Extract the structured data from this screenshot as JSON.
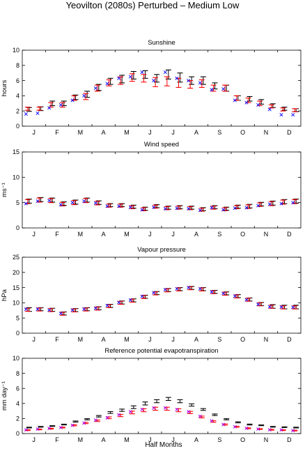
{
  "figure": {
    "title": "Yeovilton (2080s) Perturbed – Medium Low",
    "xlabel": "Half Months"
  },
  "month_labels": [
    "J",
    "F",
    "M",
    "A",
    "M",
    "J",
    "J",
    "A",
    "S",
    "O",
    "N",
    "D"
  ],
  "colors": {
    "red_series": "#ff0000",
    "blue_series": "#0000ff",
    "black_series": "#000000",
    "magenta_series": "#a000ff"
  },
  "chart_data": [
    {
      "type": "errorbar",
      "title": "Sunshine",
      "ylabel": "hours",
      "ylim": [
        0,
        10
      ],
      "yticks": [
        0,
        2,
        4,
        6,
        8,
        10
      ],
      "series": [
        {
          "name": "",
          "kind": "errorbar",
          "color": "#000000",
          "mid": [
            2.2,
            2.3,
            3.0,
            3.0,
            3.8,
            4.2,
            5.1,
            5.9,
            6.2,
            6.7,
            6.8,
            6.3,
            6.8,
            6.4,
            6.0,
            6.0,
            5.3,
            5.0,
            3.7,
            3.6,
            3.2,
            2.7,
            2.3,
            2.1
          ],
          "err": [
            0.25,
            0.25,
            0.3,
            0.3,
            0.3,
            0.4,
            0.4,
            0.4,
            0.5,
            0.5,
            0.5,
            0.5,
            0.6,
            0.6,
            0.5,
            0.5,
            0.4,
            0.4,
            0.3,
            0.3,
            0.3,
            0.25,
            0.2,
            0.2
          ]
        },
        {
          "name": "",
          "kind": "errorbar",
          "color": "#ff0000",
          "mid": [
            2.3,
            2.3,
            2.8,
            2.8,
            3.7,
            3.9,
            5.0,
            5.7,
            6.0,
            6.4,
            6.3,
            5.8,
            5.9,
            5.7,
            5.5,
            5.6,
            5.0,
            5.0,
            3.7,
            3.4,
            3.0,
            2.6,
            2.2,
            2.1
          ],
          "err": [
            0.2,
            0.2,
            0.3,
            0.3,
            0.3,
            0.4,
            0.4,
            0.4,
            0.5,
            0.5,
            0.5,
            0.6,
            0.6,
            0.6,
            0.5,
            0.5,
            0.4,
            0.4,
            0.3,
            0.3,
            0.3,
            0.2,
            0.2,
            0.2
          ]
        },
        {
          "name": "",
          "kind": "marker",
          "color": "#0000ff",
          "values": [
            1.6,
            1.7,
            2.4,
            2.8,
            3.4,
            4.0,
            5.0,
            5.6,
            6.3,
            6.5,
            7.1,
            6.0,
            7.1,
            6.3,
            6.0,
            5.7,
            4.8,
            4.9,
            3.4,
            3.1,
            2.8,
            2.2,
            1.5,
            1.5
          ]
        }
      ]
    },
    {
      "type": "errorbar",
      "title": "Wind speed",
      "ylabel": "ms⁻¹",
      "ylim": [
        0,
        15
      ],
      "yticks": [
        0,
        5,
        10,
        15
      ],
      "series": [
        {
          "name": "",
          "kind": "errorbar",
          "color": "#000000",
          "mid": [
            5.3,
            5.6,
            5.5,
            4.8,
            5.1,
            5.5,
            5.0,
            4.5,
            4.5,
            4.2,
            3.8,
            4.3,
            4.0,
            4.1,
            4.0,
            3.7,
            4.1,
            3.8,
            4.2,
            4.3,
            4.7,
            4.9,
            5.2,
            5.3
          ],
          "err": [
            0.4,
            0.4,
            0.4,
            0.35,
            0.4,
            0.4,
            0.35,
            0.3,
            0.3,
            0.3,
            0.3,
            0.3,
            0.3,
            0.3,
            0.3,
            0.3,
            0.3,
            0.3,
            0.3,
            0.35,
            0.35,
            0.4,
            0.4,
            0.4
          ]
        },
        {
          "name": "",
          "kind": "errorbar",
          "color": "#ff0000",
          "mid": [
            5.2,
            5.5,
            5.4,
            4.7,
            5.0,
            5.4,
            4.9,
            4.4,
            4.4,
            4.1,
            3.7,
            4.2,
            3.9,
            4.0,
            3.9,
            3.6,
            4.0,
            3.7,
            4.1,
            4.2,
            4.6,
            4.8,
            5.1,
            5.2
          ],
          "err": [
            0.4,
            0.4,
            0.4,
            0.35,
            0.4,
            0.4,
            0.35,
            0.3,
            0.3,
            0.3,
            0.3,
            0.3,
            0.3,
            0.3,
            0.3,
            0.3,
            0.3,
            0.3,
            0.3,
            0.35,
            0.35,
            0.4,
            0.4,
            0.4
          ]
        },
        {
          "name": "",
          "kind": "marker",
          "color": "#0000ff",
          "values": [
            4.8,
            5.3,
            5.4,
            4.6,
            5.0,
            5.3,
            4.9,
            4.3,
            4.3,
            4.1,
            3.6,
            4.1,
            3.8,
            3.9,
            3.8,
            3.5,
            4.0,
            3.6,
            3.9,
            4.0,
            4.4,
            4.7,
            4.8,
            5.0
          ]
        }
      ]
    },
    {
      "type": "errorbar",
      "title": "Vapour pressure",
      "ylabel": "hPa",
      "ylim": [
        0,
        25
      ],
      "yticks": [
        0,
        5,
        10,
        15,
        20,
        25
      ],
      "series": [
        {
          "name": "",
          "kind": "errorbar",
          "color": "#000000",
          "mid": [
            7.8,
            7.9,
            7.7,
            6.5,
            7.6,
            7.9,
            8.2,
            9.0,
            10.1,
            10.8,
            12.0,
            13.2,
            14.2,
            14.5,
            14.9,
            14.5,
            13.6,
            13.1,
            12.2,
            11.1,
            9.6,
            8.8,
            8.6,
            8.6
          ],
          "err": [
            0.6,
            0.5,
            0.5,
            0.5,
            0.5,
            0.5,
            0.5,
            0.5,
            0.5,
            0.5,
            0.5,
            0.5,
            0.5,
            0.5,
            0.5,
            0.5,
            0.5,
            0.5,
            0.5,
            0.5,
            0.5,
            0.6,
            0.6,
            0.6
          ]
        },
        {
          "name": "",
          "kind": "errorbar",
          "color": "#ff0000",
          "mid": [
            7.7,
            7.8,
            7.6,
            6.4,
            7.5,
            7.8,
            8.1,
            8.9,
            10.0,
            10.7,
            11.9,
            13.1,
            14.1,
            14.4,
            14.8,
            14.4,
            13.5,
            13.0,
            12.1,
            11.0,
            9.5,
            8.7,
            8.5,
            8.5
          ],
          "err": [
            0.5,
            0.5,
            0.5,
            0.5,
            0.5,
            0.5,
            0.5,
            0.5,
            0.5,
            0.5,
            0.5,
            0.5,
            0.5,
            0.5,
            0.5,
            0.5,
            0.5,
            0.5,
            0.5,
            0.5,
            0.5,
            0.5,
            0.5,
            0.5
          ]
        },
        {
          "name": "",
          "kind": "marker",
          "color": "#0000ff",
          "values": [
            7.9,
            7.9,
            7.6,
            6.5,
            7.6,
            7.9,
            8.2,
            9.1,
            10.1,
            10.9,
            12.1,
            13.3,
            14.3,
            14.6,
            15.0,
            14.6,
            13.6,
            13.1,
            12.2,
            11.0,
            9.5,
            8.7,
            8.6,
            8.5
          ]
        }
      ]
    },
    {
      "type": "errorbar",
      "title": "Reference potential evapotranspiration",
      "ylabel": "mm day⁻¹",
      "ylim": [
        0,
        10
      ],
      "yticks": [
        0,
        2,
        4,
        6,
        8,
        10
      ],
      "series": [
        {
          "name": "",
          "kind": "errorbar",
          "color": "#000000",
          "mid": [
            0.8,
            0.9,
            1.0,
            1.2,
            1.6,
            1.9,
            2.3,
            2.8,
            3.1,
            3.5,
            4.0,
            4.3,
            4.6,
            4.3,
            3.8,
            3.2,
            2.5,
            1.9,
            1.5,
            1.2,
            1.1,
            0.9,
            0.85,
            0.8
          ],
          "err": [
            0.05,
            0.05,
            0.05,
            0.05,
            0.07,
            0.08,
            0.1,
            0.12,
            0.15,
            0.18,
            0.2,
            0.2,
            0.2,
            0.2,
            0.15,
            0.12,
            0.1,
            0.08,
            0.07,
            0.06,
            0.05,
            0.05,
            0.05,
            0.05
          ]
        },
        {
          "name": "",
          "kind": "errorbar",
          "color": "#ff0000",
          "mid": [
            0.45,
            0.55,
            0.65,
            0.8,
            1.1,
            1.4,
            1.7,
            2.1,
            2.4,
            2.8,
            3.1,
            3.3,
            3.3,
            3.1,
            2.8,
            2.2,
            1.6,
            1.2,
            0.9,
            0.7,
            0.6,
            0.5,
            0.45,
            0.4
          ],
          "err": [
            0.05,
            0.05,
            0.05,
            0.05,
            0.07,
            0.08,
            0.1,
            0.12,
            0.15,
            0.18,
            0.2,
            0.2,
            0.2,
            0.2,
            0.15,
            0.12,
            0.1,
            0.08,
            0.07,
            0.06,
            0.05,
            0.05,
            0.05,
            0.05
          ]
        },
        {
          "name": "",
          "kind": "marker",
          "color": "#a000ff",
          "values": [
            0.5,
            0.6,
            0.7,
            0.8,
            1.1,
            1.4,
            1.8,
            2.1,
            2.5,
            2.9,
            3.2,
            3.4,
            3.4,
            3.2,
            2.9,
            2.3,
            1.7,
            1.2,
            0.9,
            0.7,
            0.6,
            0.5,
            0.5,
            0.4
          ]
        }
      ]
    }
  ]
}
